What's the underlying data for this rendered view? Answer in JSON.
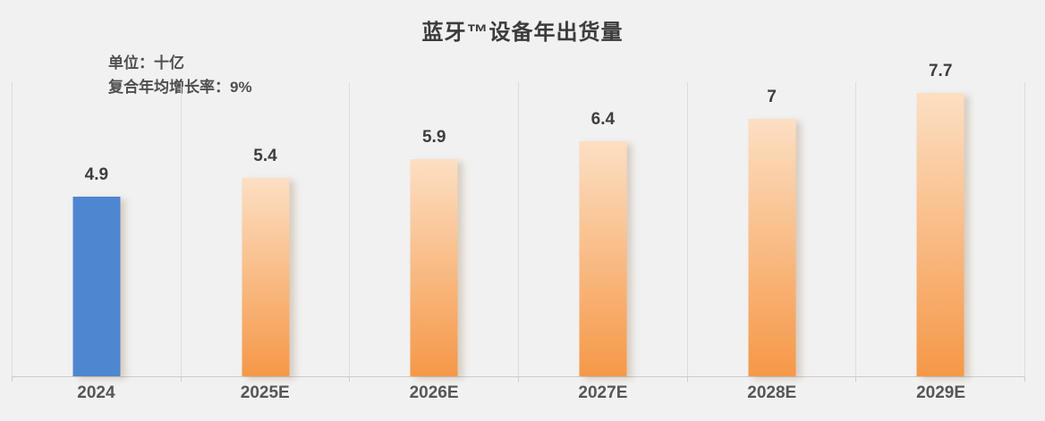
{
  "title": "蓝牙™设备年出货量",
  "notes": {
    "unit": "单位：十亿",
    "cagr": "复合年均增长率：9%"
  },
  "colors": {
    "background": "#F1F1F1",
    "title_text": "#3B3B3B",
    "note_text": "#4E4E4E",
    "label_text": "#3D3D3D",
    "axis_text": "#565656",
    "gridline": "#DDDDDD",
    "axis_line": "#CBCBCB",
    "actual_bar": "#4E86D0",
    "forecast_bar_top": "#FCDFC3",
    "forecast_bar_bottom": "#F59848"
  },
  "chart_data": {
    "type": "bar",
    "title": "蓝牙™设备年出货量",
    "unit_note": "单位：十亿",
    "cagr_note": "复合年均增长率：9%",
    "categories": [
      "2024",
      "2025E",
      "2026E",
      "2027E",
      "2028E",
      "2029E"
    ],
    "values": [
      4.9,
      5.4,
      5.9,
      6.4,
      7,
      7.7
    ],
    "value_labels": [
      "4.9",
      "5.4",
      "5.9",
      "6.4",
      "7",
      "7.7"
    ],
    "series_styles": [
      "actual",
      "forecast",
      "forecast",
      "forecast",
      "forecast",
      "forecast"
    ],
    "xlabel": "",
    "ylabel": "",
    "ylim": [
      0,
      8
    ],
    "grid": "vertical-category-boundaries",
    "legend": "none"
  }
}
